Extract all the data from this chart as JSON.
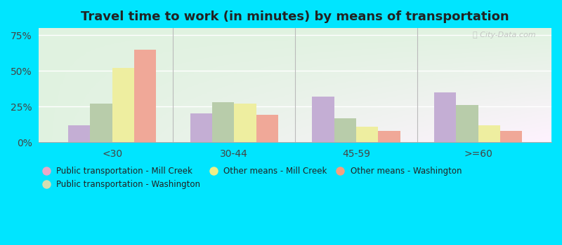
{
  "title": "Travel time to work (in minutes) by means of transportation",
  "categories": [
    "<30",
    "30-44",
    "45-59",
    ">=60"
  ],
  "series_order": [
    "Public transportation - Mill Creek",
    "Public transportation - Washington",
    "Other means - Mill Creek",
    "Other means - Washington"
  ],
  "series": {
    "Public transportation - Mill Creek": [
      12,
      20,
      32,
      35
    ],
    "Public transportation - Washington": [
      27,
      28,
      17,
      26
    ],
    "Other means - Mill Creek": [
      52,
      27,
      11,
      12
    ],
    "Other means - Washington": [
      65,
      19,
      8,
      8
    ]
  },
  "colors": {
    "Public transportation - Mill Creek": "#c4aed4",
    "Public transportation - Washington": "#b8ccaa",
    "Other means - Mill Creek": "#eeeea0",
    "Other means - Washington": "#f0a898"
  },
  "legend_colors": {
    "Public transportation - Mill Creek": "#e8a8c8",
    "Public transportation - Washington": "#d4ddb0",
    "Other means - Mill Creek": "#eeee88",
    "Other means - Washington": "#f4a080"
  },
  "legend_order": [
    "Public transportation - Mill Creek",
    "Public transportation - Washington",
    "Other means - Mill Creek",
    "Other means - Washington"
  ],
  "yticks": [
    0,
    25,
    50,
    75
  ],
  "ylim": [
    0,
    80
  ],
  "background_outer": "#00e5ff",
  "title_fontsize": 13,
  "bar_width": 0.18
}
